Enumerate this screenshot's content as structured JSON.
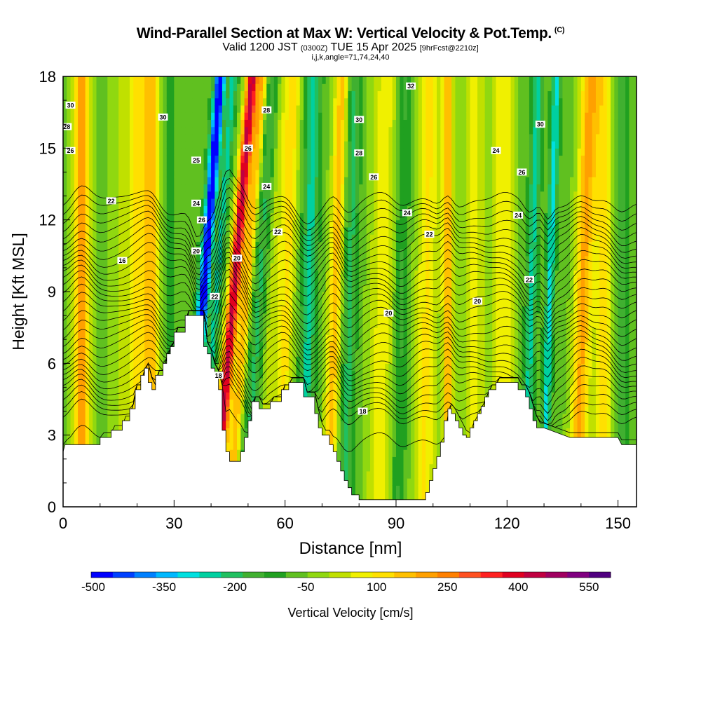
{
  "header": {
    "title": "Wind-Parallel Section at Max W: Vertical Velocity & Pot.Temp.",
    "copyright_mark": "(C)",
    "subtitle_valid": "Valid 1200 JST",
    "subtitle_utc": "(0300Z)",
    "subtitle_date": "TUE 15 Apr 2025",
    "subtitle_fcst": "[9hrFcst@2210z]",
    "subtitle_grid": "i,j,k,angle=71,74,24,40"
  },
  "chart_data": {
    "type": "heatmap",
    "title": "Wind-Parallel Section at Max W: Vertical Velocity & Pot.Temp.",
    "xlabel": "Distance [nm]",
    "ylabel": "Height [Kft MSL]",
    "xlim": [
      0,
      155
    ],
    "ylim": [
      0,
      18
    ],
    "x_ticks": [
      0,
      30,
      60,
      90,
      120,
      150
    ],
    "y_ticks": [
      0,
      3,
      6,
      9,
      12,
      15,
      18
    ],
    "colorbar": {
      "label": "Vertical Velocity [cm/s]",
      "ticks": [
        "-500",
        "-350",
        "-200",
        "-50",
        "100",
        "250",
        "400",
        "550"
      ],
      "min": -500,
      "max": 600,
      "step": 50,
      "colors": [
        "#0000ff",
        "#0040ff",
        "#0080ff",
        "#00b8ff",
        "#00e0e0",
        "#00d0a0",
        "#20c060",
        "#40b030",
        "#20a020",
        "#60c020",
        "#90d810",
        "#c0e000",
        "#f0f000",
        "#ffe000",
        "#ffc000",
        "#ffa000",
        "#ff8000",
        "#ff5020",
        "#ff2020",
        "#e00020",
        "#c00040",
        "#a00060",
        "#800080",
        "#500080"
      ]
    },
    "terrain_kft": [
      [
        0,
        2.3
      ],
      [
        0.5,
        2.6
      ],
      [
        10,
        2.6
      ],
      [
        10,
        2.9
      ],
      [
        13,
        2.9
      ],
      [
        13,
        3.2
      ],
      [
        16,
        3.2
      ],
      [
        16,
        3.6
      ],
      [
        18,
        3.6
      ],
      [
        18,
        4.1
      ],
      [
        19.5,
        4.1
      ],
      [
        19.5,
        4.9
      ],
      [
        21,
        4.9
      ],
      [
        21,
        5.5
      ],
      [
        22,
        5.5
      ],
      [
        22,
        5.8
      ],
      [
        23,
        5.8
      ],
      [
        23,
        5.2
      ],
      [
        24,
        5.2
      ],
      [
        24,
        4.9
      ],
      [
        25,
        4.9
      ],
      [
        25,
        5.5
      ],
      [
        27,
        5.5
      ],
      [
        27,
        6.0
      ],
      [
        28,
        6.0
      ],
      [
        28,
        6.4
      ],
      [
        29,
        6.4
      ],
      [
        29,
        6.7
      ],
      [
        30,
        6.7
      ],
      [
        30,
        7.3
      ],
      [
        33,
        7.3
      ],
      [
        33,
        8.0
      ],
      [
        38,
        8.0
      ],
      [
        38,
        6.7
      ],
      [
        39,
        6.7
      ],
      [
        39,
        6.4
      ],
      [
        40,
        6.4
      ],
      [
        40,
        5.8
      ],
      [
        41,
        5.8
      ],
      [
        41,
        5.5
      ],
      [
        42,
        5.5
      ],
      [
        42,
        4.9
      ],
      [
        43,
        4.9
      ],
      [
        43,
        3.2
      ],
      [
        44,
        3.2
      ],
      [
        44,
        2.3
      ],
      [
        45,
        2.3
      ],
      [
        45,
        1.9
      ],
      [
        48,
        1.9
      ],
      [
        48,
        2.3
      ],
      [
        49,
        2.3
      ],
      [
        49,
        2.9
      ],
      [
        50,
        2.9
      ],
      [
        50,
        3.6
      ],
      [
        51,
        3.6
      ],
      [
        51,
        4.4
      ],
      [
        53,
        4.4
      ],
      [
        53,
        4.1
      ],
      [
        56,
        4.1
      ],
      [
        56,
        4.4
      ],
      [
        59,
        4.4
      ],
      [
        59,
        4.9
      ],
      [
        61,
        4.9
      ],
      [
        61,
        5.2
      ],
      [
        65,
        5.2
      ],
      [
        65,
        4.6
      ],
      [
        68,
        4.6
      ],
      [
        68,
        3.9
      ],
      [
        69,
        3.9
      ],
      [
        69,
        3.3
      ],
      [
        70,
        3.3
      ],
      [
        70,
        3.0
      ],
      [
        72,
        3.0
      ],
      [
        72,
        2.6
      ],
      [
        73,
        2.6
      ],
      [
        73,
        2.3
      ],
      [
        74,
        2.3
      ],
      [
        74,
        1.9
      ],
      [
        75,
        1.9
      ],
      [
        75,
        1.5
      ],
      [
        76,
        1.5
      ],
      [
        76,
        1.1
      ],
      [
        77,
        1.1
      ],
      [
        77,
        0.8
      ],
      [
        78,
        0.8
      ],
      [
        78,
        0.5
      ],
      [
        80,
        0.5
      ],
      [
        80,
        0.3
      ],
      [
        98,
        0.3
      ],
      [
        98,
        0.6
      ],
      [
        99,
        0.6
      ],
      [
        99,
        1.1
      ],
      [
        100,
        1.1
      ],
      [
        100,
        1.6
      ],
      [
        101,
        1.6
      ],
      [
        101,
        2.1
      ],
      [
        102,
        2.1
      ],
      [
        102,
        2.7
      ],
      [
        103,
        2.7
      ],
      [
        103,
        3.6
      ],
      [
        104,
        3.6
      ],
      [
        104,
        4.1
      ],
      [
        105,
        4.1
      ],
      [
        105,
        3.9
      ],
      [
        106,
        3.9
      ],
      [
        106,
        3.6
      ],
      [
        107,
        3.6
      ],
      [
        107,
        3.3
      ],
      [
        108,
        3.3
      ],
      [
        108,
        3.0
      ],
      [
        109,
        3.0
      ],
      [
        109,
        2.9
      ],
      [
        110,
        2.9
      ],
      [
        110,
        3.3
      ],
      [
        111,
        3.3
      ],
      [
        111,
        3.6
      ],
      [
        112,
        3.6
      ],
      [
        112,
        3.9
      ],
      [
        113,
        3.9
      ],
      [
        113,
        4.2
      ],
      [
        114,
        4.2
      ],
      [
        114,
        4.6
      ],
      [
        115,
        4.6
      ],
      [
        115,
        4.9
      ],
      [
        117,
        4.9
      ],
      [
        117,
        5.2
      ],
      [
        123,
        5.2
      ],
      [
        123,
        4.9
      ],
      [
        125,
        4.9
      ],
      [
        125,
        4.6
      ],
      [
        126,
        4.6
      ],
      [
        126,
        4.1
      ],
      [
        127,
        4.1
      ],
      [
        127,
        3.6
      ],
      [
        128,
        3.6
      ],
      [
        128,
        3.3
      ],
      [
        130,
        3.3
      ],
      [
        130,
        3.3
      ],
      [
        137,
        2.9
      ],
      [
        140,
        2.9
      ],
      [
        144,
        2.9
      ],
      [
        144,
        2.9
      ],
      [
        150,
        2.9
      ],
      [
        151,
        2.6
      ],
      [
        153,
        2.6
      ],
      [
        155,
        2.6
      ]
    ],
    "bands": [
      {
        "x": 5,
        "w": 300,
        "width": 2.5,
        "comment_color": "#f0f000"
      },
      {
        "x": 17,
        "w": 100,
        "width": 4
      },
      {
        "x": 21,
        "w": 150,
        "width": 2.5
      },
      {
        "x": 24,
        "w": 220,
        "width": 2
      },
      {
        "x": 29,
        "w": -50,
        "width": 2
      },
      {
        "x": 36.5,
        "w": -500,
        "width": 1.5,
        "tilt": 0.5
      },
      {
        "x": 40,
        "w": -200,
        "width": 1.2,
        "tilt": 0.5
      },
      {
        "x": 44.5,
        "w": 550,
        "width": 1.6,
        "tilt": 0.55
      },
      {
        "x": 48,
        "w": 260,
        "width": 1.5,
        "tilt": 0.5
      },
      {
        "x": 52,
        "w": -150,
        "width": 2,
        "tilt": 0.4
      },
      {
        "x": 56,
        "w": 100,
        "width": 2.5,
        "tilt": 0.3
      },
      {
        "x": 60,
        "w": 180,
        "width": 2,
        "tilt": 0.2
      },
      {
        "x": 66,
        "w": -200,
        "width": 2,
        "tilt": 0.15
      },
      {
        "x": 73,
        "w": 250,
        "width": 2,
        "tilt": 0.2
      },
      {
        "x": 77,
        "w": -150,
        "width": 2,
        "tilt": 0.15
      },
      {
        "x": 86,
        "w": 150,
        "width": 3.5,
        "tilt": 0.1
      },
      {
        "x": 91,
        "w": -100,
        "width": 2,
        "tilt": 0.1
      },
      {
        "x": 98,
        "w": 180,
        "width": 3,
        "tilt": 0.1
      },
      {
        "x": 104,
        "w": 260,
        "width": 1.5
      },
      {
        "x": 111,
        "w": 140,
        "width": 3
      },
      {
        "x": 119,
        "w": 170,
        "width": 3
      },
      {
        "x": 126,
        "w": -200,
        "width": 1.5,
        "tilt": 0.2
      },
      {
        "x": 131,
        "w": -250,
        "width": 1.2,
        "tilt": 0.2
      },
      {
        "x": 140,
        "w": 280,
        "width": 2.5,
        "tilt": 0.2
      },
      {
        "x": 146,
        "w": 180,
        "width": 2.5
      },
      {
        "x": 151,
        "w": -100,
        "width": 1.8
      }
    ],
    "theta_lines": [
      16,
      18,
      18.5,
      19,
      19.5,
      20,
      20.5,
      21,
      21.5,
      22,
      22.5,
      23,
      23.5,
      24,
      24.5,
      25,
      25.5,
      26,
      26.5,
      27,
      27.5,
      28,
      28.5,
      29,
      29.5,
      30,
      30.5,
      31,
      31.5,
      32,
      32.5,
      33
    ],
    "contour_labels": [
      {
        "text": "30",
        "x": 2,
        "y": 16.8
      },
      {
        "text": "28",
        "x": 1,
        "y": 15.9
      },
      {
        "text": "26",
        "x": 2,
        "y": 14.9
      },
      {
        "text": "22",
        "x": 13,
        "y": 12.8
      },
      {
        "text": "16",
        "x": 16,
        "y": 10.3
      },
      {
        "text": "30",
        "x": 27,
        "y": 16.3
      },
      {
        "text": "25",
        "x": 36,
        "y": 14.5
      },
      {
        "text": "24",
        "x": 36,
        "y": 12.7
      },
      {
        "text": "26",
        "x": 37.5,
        "y": 12.0
      },
      {
        "text": "20",
        "x": 36,
        "y": 10.7
      },
      {
        "text": "22",
        "x": 41,
        "y": 8.8
      },
      {
        "text": "18",
        "x": 42,
        "y": 5.5
      },
      {
        "text": "28",
        "x": 55,
        "y": 16.6
      },
      {
        "text": "26",
        "x": 50,
        "y": 15.0
      },
      {
        "text": "24",
        "x": 55,
        "y": 13.4
      },
      {
        "text": "22",
        "x": 58,
        "y": 11.5
      },
      {
        "text": "20",
        "x": 47,
        "y": 10.4
      },
      {
        "text": "32",
        "x": 94,
        "y": 17.6
      },
      {
        "text": "30",
        "x": 80,
        "y": 16.2
      },
      {
        "text": "28",
        "x": 80,
        "y": 14.8
      },
      {
        "text": "26",
        "x": 84,
        "y": 13.8
      },
      {
        "text": "24",
        "x": 93,
        "y": 12.3
      },
      {
        "text": "22",
        "x": 99,
        "y": 11.4
      },
      {
        "text": "20",
        "x": 88,
        "y": 8.1
      },
      {
        "text": "18",
        "x": 81,
        "y": 4.0
      },
      {
        "text": "24",
        "x": 117,
        "y": 14.9
      },
      {
        "text": "26",
        "x": 124,
        "y": 14.0
      },
      {
        "text": "24",
        "x": 123,
        "y": 12.2
      },
      {
        "text": "30",
        "x": 129,
        "y": 16.0
      },
      {
        "text": "22",
        "x": 126,
        "y": 9.5
      },
      {
        "text": "20",
        "x": 112,
        "y": 8.6
      }
    ]
  }
}
